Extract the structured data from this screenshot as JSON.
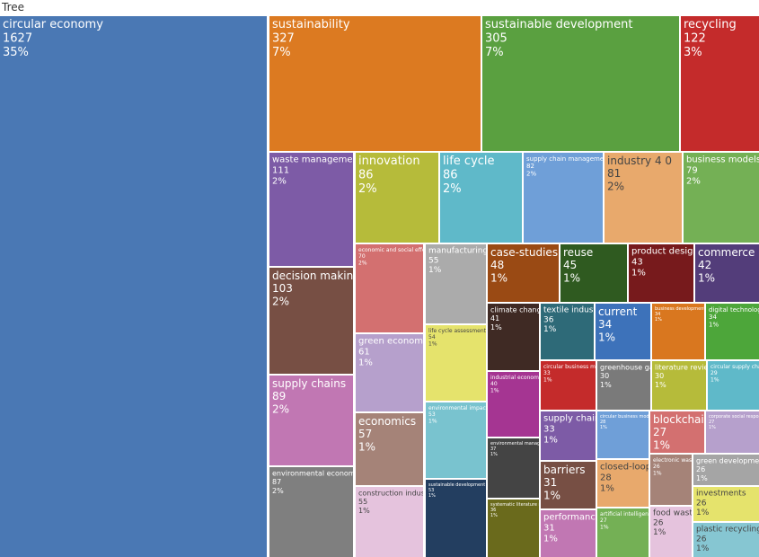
{
  "chart_data": {
    "type": "treemap",
    "title": "Tree",
    "labels": [
      "circular economy",
      "sustainability",
      "sustainable development",
      "recycling",
      "waste management",
      "innovation",
      "life cycle",
      "supply chain management",
      "industry 4 0",
      "business models",
      "decision making",
      "supply chains",
      "environmental economics",
      "economic and social effects",
      "green economy",
      "economics",
      "construction industry",
      "manufacturing",
      "life cycle assessment",
      "environmental impact",
      "sustainable development goals",
      "case-studies",
      "reuse",
      "product design",
      "commerce",
      "climate change",
      "industrial economics",
      "environmental management",
      "systematic literature review",
      "textile industry",
      "current",
      "business development",
      "digital technologies",
      "circular business model",
      "greenhouse gases",
      "literature review",
      "circular supply chain",
      "supply chain",
      "circular business models",
      "blockchain",
      "corporate social responsibility",
      "barriers",
      "performance",
      "closed-loop",
      "artificial intelligence",
      "electronic waste",
      "food waste",
      "green development",
      "investments",
      "plastic recycling"
    ],
    "values": [
      1627,
      327,
      305,
      122,
      111,
      86,
      86,
      82,
      81,
      79,
      103,
      89,
      87,
      70,
      61,
      57,
      55,
      55,
      54,
      53,
      53,
      48,
      45,
      43,
      42,
      41,
      40,
      37,
      36,
      36,
      34,
      34,
      34,
      33,
      30,
      30,
      29,
      33,
      28,
      27,
      27,
      31,
      31,
      28,
      27,
      26,
      26,
      26,
      26,
      26
    ],
    "percents": [
      "35%",
      "7%",
      "7%",
      "3%",
      "2%",
      "2%",
      "2%",
      "2%",
      "2%",
      "2%",
      "2%",
      "2%",
      "2%",
      "2%",
      "1%",
      "1%",
      "1%",
      "1%",
      "1%",
      "1%",
      "1%",
      "1%",
      "1%",
      "1%",
      "1%",
      "1%",
      "1%",
      "1%",
      "1%",
      "1%",
      "1%",
      "1%",
      "1%",
      "1%",
      "1%",
      "1%",
      "1%",
      "1%",
      "1%",
      "1%",
      "1%",
      "1%",
      "1%",
      "1%",
      "1%",
      "1%",
      "1%",
      "1%",
      "1%",
      "1%"
    ],
    "colors": [
      "#4a78b4",
      "#dc7a21",
      "#5aa040",
      "#c42b2b",
      "#7d5ba6",
      "#b6bb3a",
      "#5fb9c9",
      "#6f9fd8",
      "#e8a96c",
      "#74b055",
      "#774f44",
      "#c177b3",
      "#7f7f7f",
      "#d37070",
      "#b6a0cc",
      "#a58378",
      "#e5c3dd",
      "#ababab",
      "#e5e36c",
      "#79c3cf",
      "#233e60",
      "#9a4a14",
      "#2f5a20",
      "#771a1c",
      "#533d7a",
      "#3f2a24",
      "#a53592",
      "#444444",
      "#6a6a1c",
      "#2e6a78",
      "#3d72ba",
      "#d9771f",
      "#4da63a",
      "#c42b2b",
      "#7a7a7a",
      "#b6bb3a",
      "#5fb9c9",
      "#7d5ba6",
      "#6f9fd8",
      "#d37070",
      "#b6a0cc",
      "#774f44",
      "#c177b3",
      "#e8a96c",
      "#74b055",
      "#a58378",
      "#e5c3dd",
      "#a5a5a5",
      "#e5e36c",
      "#86c6d2"
    ]
  }
}
